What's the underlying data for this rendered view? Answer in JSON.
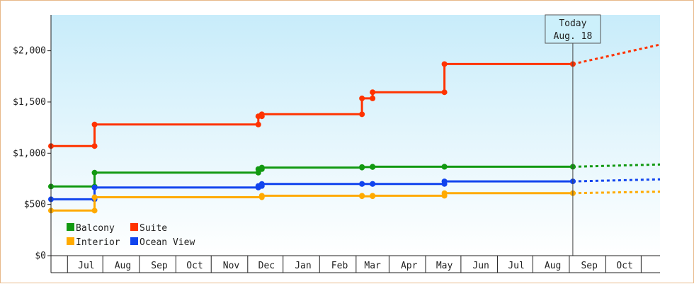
{
  "chart_data": {
    "type": "line",
    "subtype": "step",
    "title": "",
    "xlabel": "",
    "ylabel": "",
    "ylim": [
      0,
      2350
    ],
    "xlim": [
      "2018-06-01",
      "2019-10-31"
    ],
    "yticks": [
      {
        "value": 0,
        "label": "$0"
      },
      {
        "value": 500,
        "label": "$500"
      },
      {
        "value": 1000,
        "label": "$1,000"
      },
      {
        "value": 1500,
        "label": "$1,500"
      },
      {
        "value": 2000,
        "label": "$2,000"
      }
    ],
    "month_boundaries": [
      "2018-06-15",
      "2018-07-15",
      "2018-08-15",
      "2018-09-15",
      "2018-10-15",
      "2018-11-15",
      "2018-12-15",
      "2019-01-15",
      "2019-02-15",
      "2019-03-15",
      "2019-04-15",
      "2019-05-15",
      "2019-06-15",
      "2019-07-15",
      "2019-08-15",
      "2019-09-15",
      "2019-10-15"
    ],
    "xtick_labels": [
      {
        "label": "Jul",
        "date": "2018-07-01"
      },
      {
        "label": "Aug",
        "date": "2018-08-01"
      },
      {
        "label": "Sep",
        "date": "2018-09-01"
      },
      {
        "label": "Oct",
        "date": "2018-10-01"
      },
      {
        "label": "Nov",
        "date": "2018-11-01"
      },
      {
        "label": "Dec",
        "date": "2018-12-01"
      },
      {
        "label": "Jan",
        "date": "2019-01-01"
      },
      {
        "label": "Feb",
        "date": "2019-02-01"
      },
      {
        "label": "Mar",
        "date": "2019-03-01"
      },
      {
        "label": "Apr",
        "date": "2019-04-01"
      },
      {
        "label": "May",
        "date": "2019-05-01"
      },
      {
        "label": "Jun",
        "date": "2019-06-01"
      },
      {
        "label": "Jul",
        "date": "2019-07-01"
      },
      {
        "label": "Aug",
        "date": "2019-08-01"
      },
      {
        "label": "Sep",
        "date": "2019-09-01"
      },
      {
        "label": "Oct",
        "date": "2019-10-01"
      }
    ],
    "today": {
      "date": "2019-08-18",
      "label_line1": "Today",
      "label_line2": "Aug. 18"
    },
    "legend_position": "bottom-left",
    "grid": false,
    "background_gradient": [
      "#c8ecfa",
      "#ffffff"
    ],
    "series": [
      {
        "name": "Suite",
        "color": "#ff3300",
        "points": [
          [
            "2018-06-01",
            1070
          ],
          [
            "2018-07-08",
            1070
          ],
          [
            "2018-07-08",
            1280
          ],
          [
            "2018-11-24",
            1280
          ],
          [
            "2018-11-24",
            1360
          ],
          [
            "2018-11-27",
            1360
          ],
          [
            "2018-11-27",
            1380
          ],
          [
            "2019-02-20",
            1380
          ],
          [
            "2019-02-20",
            1535
          ],
          [
            "2019-03-01",
            1535
          ],
          [
            "2019-03-01",
            1595
          ],
          [
            "2019-05-01",
            1595
          ],
          [
            "2019-05-01",
            1870
          ],
          [
            "2019-08-18",
            1870
          ]
        ],
        "projection": [
          [
            "2019-08-18",
            1870
          ],
          [
            "2019-10-31",
            2060
          ]
        ]
      },
      {
        "name": "Balcony",
        "color": "#119911",
        "points": [
          [
            "2018-06-01",
            675
          ],
          [
            "2018-07-08",
            675
          ],
          [
            "2018-07-08",
            810
          ],
          [
            "2018-11-24",
            810
          ],
          [
            "2018-11-24",
            845
          ],
          [
            "2018-11-27",
            845
          ],
          [
            "2018-11-27",
            860
          ],
          [
            "2019-02-20",
            860
          ],
          [
            "2019-02-20",
            865
          ],
          [
            "2019-03-01",
            865
          ],
          [
            "2019-03-01",
            868
          ],
          [
            "2019-05-01",
            868
          ],
          [
            "2019-05-01",
            868
          ],
          [
            "2019-08-18",
            868
          ]
        ],
        "projection": [
          [
            "2019-08-18",
            868
          ],
          [
            "2019-10-31",
            890
          ]
        ]
      },
      {
        "name": "Ocean View",
        "color": "#1144ee",
        "points": [
          [
            "2018-06-01",
            550
          ],
          [
            "2018-07-08",
            550
          ],
          [
            "2018-07-08",
            665
          ],
          [
            "2018-11-24",
            665
          ],
          [
            "2018-11-24",
            680
          ],
          [
            "2018-11-27",
            680
          ],
          [
            "2018-11-27",
            700
          ],
          [
            "2019-02-20",
            700
          ],
          [
            "2019-02-20",
            700
          ],
          [
            "2019-03-01",
            700
          ],
          [
            "2019-03-01",
            700
          ],
          [
            "2019-05-01",
            700
          ],
          [
            "2019-05-01",
            725
          ],
          [
            "2019-08-18",
            725
          ]
        ],
        "projection": [
          [
            "2019-08-18",
            725
          ],
          [
            "2019-10-31",
            745
          ]
        ]
      },
      {
        "name": "Interior",
        "color": "#ffaa00",
        "points": [
          [
            "2018-06-01",
            440
          ],
          [
            "2018-07-08",
            440
          ],
          [
            "2018-07-08",
            570
          ],
          [
            "2018-11-27",
            570
          ],
          [
            "2018-11-27",
            585
          ],
          [
            "2019-02-20",
            585
          ],
          [
            "2019-02-20",
            580
          ],
          [
            "2019-03-01",
            580
          ],
          [
            "2019-03-01",
            585
          ],
          [
            "2019-05-01",
            585
          ],
          [
            "2019-05-01",
            610
          ],
          [
            "2019-08-18",
            610
          ]
        ],
        "projection": [
          [
            "2019-08-18",
            610
          ],
          [
            "2019-10-31",
            625
          ]
        ]
      }
    ],
    "legend": [
      {
        "name": "Balcony",
        "color": "#119911"
      },
      {
        "name": "Suite",
        "color": "#ff3300"
      },
      {
        "name": "Interior",
        "color": "#ffaa00"
      },
      {
        "name": "Ocean View",
        "color": "#1144ee"
      }
    ]
  }
}
